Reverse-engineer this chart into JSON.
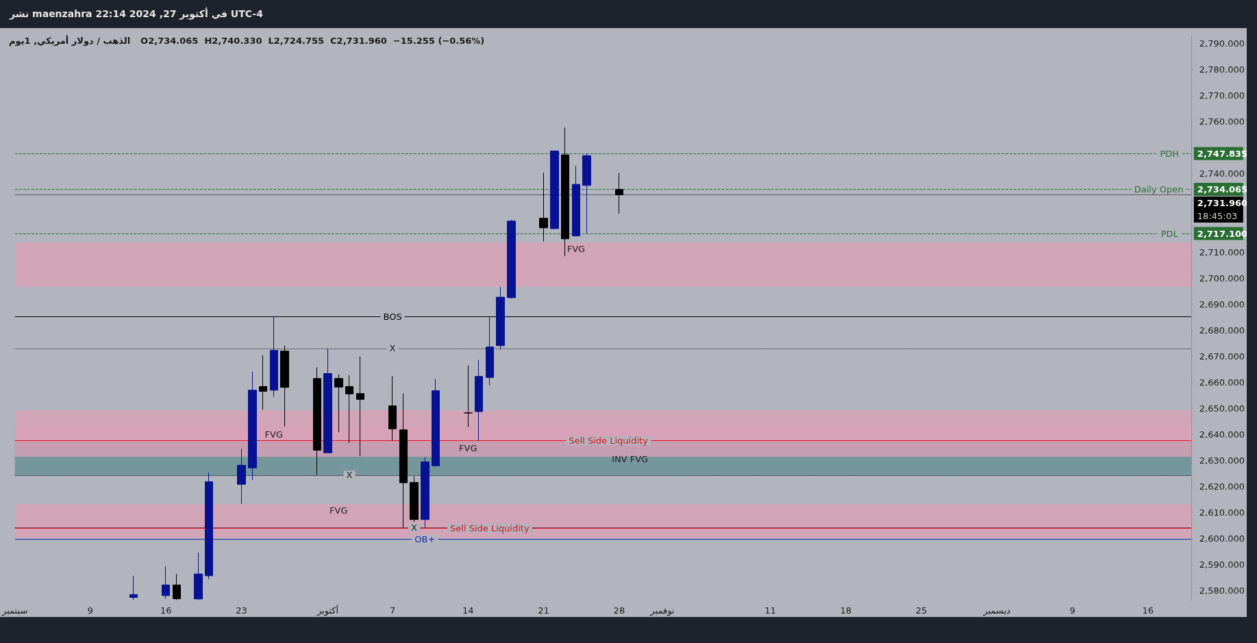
{
  "chart_data": {
    "type": "candlestick",
    "title": "الذهب / دولار أمريكي, 1يوم",
    "subtitle": "O2,734.065  H2,740.330  L2,724.755  C2,731.960  −15.255 (−0.56%)",
    "annotations": [
      "نشر maenzahra في أكتوبر 27, 2024 22:14 UTC-4",
      {
        "text": "BOS",
        "x": "2024-10-07",
        "y": 2685.3
      },
      {
        "text": "X",
        "x": "2024-10-07",
        "y": 2673.0
      },
      {
        "text": "X",
        "x": "2024-10-03",
        "y": 2624.4
      },
      {
        "text": "X",
        "x": "2024-10-09",
        "y": 2604.3
      },
      {
        "text": "Sell Side Liquidity",
        "x": "2024-10-27",
        "y": 2637.6
      },
      {
        "text": "Sell Side Liquidity",
        "x": "2024-10-16",
        "y": 2604.1
      },
      {
        "text": "OB+",
        "x": "2024-10-10",
        "y": 2599.8
      },
      {
        "text": "FVG",
        "x": "2024-09-26",
        "y": 2642.6
      },
      {
        "text": "FVG",
        "x": "2024-10-02",
        "y": 2613.3
      },
      {
        "text": "FVG",
        "x": "2024-10-14",
        "y": 2637.2
      },
      {
        "text": "INV FVG",
        "x": "2024-10-29",
        "y": 2630.65
      },
      {
        "text": "FVG",
        "x": "2024-10-24",
        "y": 2713.7
      },
      {
        "text": "PDH",
        "x": "2024-12-18",
        "y": 2747.835
      },
      {
        "text": "Daily Open",
        "x": "2024-12-17",
        "y": 2734.065
      },
      {
        "text": "PDL",
        "x": "2024-12-18",
        "y": 2717.1
      },
      "18:45:03"
    ],
    "x": [
      "2024-09-13",
      "2024-09-16",
      "2024-09-17",
      "2024-09-19",
      "2024-09-20",
      "2024-09-23",
      "2024-09-24",
      "2024-09-25",
      "2024-09-26",
      "2024-09-27",
      "2024-09-30",
      "2024-10-01",
      "2024-10-02",
      "2024-10-03",
      "2024-10-04",
      "2024-10-07",
      "2024-10-08",
      "2024-10-09",
      "2024-10-10",
      "2024-10-11",
      "2024-10-14",
      "2024-10-15",
      "2024-10-16",
      "2024-10-17",
      "2024-10-18",
      "2024-10-21",
      "2024-10-22",
      "2024-10-23",
      "2024-10-24",
      "2024-10-25",
      "2024-10-28"
    ],
    "ohlc": [
      [
        2577.5,
        2585.8,
        2576.5,
        2578.6
      ],
      [
        2578.2,
        2589.5,
        2576.9,
        2582.3
      ],
      [
        2582.3,
        2586.5,
        2576.5,
        2577.0
      ],
      [
        2576.9,
        2594.7,
        2576.5,
        2586.5
      ],
      [
        2585.8,
        2625.4,
        2584.5,
        2621.9
      ],
      [
        2620.9,
        2634.5,
        2613.4,
        2628.2
      ],
      [
        2627.2,
        2664.1,
        2622.5,
        2657.0
      ],
      [
        2658.4,
        2670.4,
        2649.5,
        2656.6
      ],
      [
        2657.0,
        2685.3,
        2654.4,
        2672.3
      ],
      [
        2672.0,
        2674.1,
        2643.1,
        2658.1
      ],
      [
        2661.5,
        2665.7,
        2624.4,
        2634.0
      ],
      [
        2633.0,
        2673.1,
        2633.0,
        2663.4
      ],
      [
        2661.5,
        2663.1,
        2640.9,
        2658.2
      ],
      [
        2658.4,
        2662.8,
        2636.7,
        2655.6
      ],
      [
        2655.7,
        2669.9,
        2631.7,
        2653.5
      ],
      [
        2651.0,
        2662.4,
        2637.6,
        2642.2
      ],
      [
        2641.8,
        2655.8,
        2604.1,
        2621.5
      ],
      [
        2621.6,
        2624.0,
        2606.5,
        2607.4
      ],
      [
        2607.4,
        2631.3,
        2604.1,
        2629.5
      ],
      [
        2628.0,
        2661.3,
        2628.0,
        2656.8
      ],
      [
        2648.3,
        2666.5,
        2642.9,
        2648.3
      ],
      [
        2648.8,
        2668.6,
        2637.6,
        2662.3
      ],
      [
        2661.9,
        2685.3,
        2658.8,
        2673.6
      ],
      [
        2674.1,
        2696.6,
        2672.8,
        2692.7
      ],
      [
        2692.5,
        2722.4,
        2692.2,
        2721.9
      ],
      [
        2723.0,
        2740.5,
        2714.1,
        2719.3
      ],
      [
        2719.0,
        2748.8,
        2719.0,
        2748.8
      ],
      [
        2747.3,
        2757.8,
        2708.5,
        2715.1
      ],
      [
        2716.2,
        2743.1,
        2716.2,
        2736.0
      ],
      [
        2735.6,
        2747.835,
        2717.1,
        2747.0
      ],
      [
        2734.065,
        2740.33,
        2724.755,
        2731.96
      ]
    ],
    "colors": [
      "#061292",
      "#061292",
      "#000000",
      "#061292",
      "#061292",
      "#061292",
      "#061292",
      "#000000",
      "#061292",
      "#000000",
      "#000000",
      "#061292",
      "#000000",
      "#000000",
      "#000000",
      "#000000",
      "#000000",
      "#000000",
      "#061292",
      "#061292",
      "#000000",
      "#061292",
      "#061292",
      "#061292",
      "#061292",
      "#000000",
      "#061292",
      "#000000",
      "#061292",
      "#061292",
      "#000000"
    ],
    "xlim": [
      "2024-09-02",
      "2024-12-20"
    ],
    "xticks": [
      {
        "value": "2024-09-02",
        "label": "سبتمبر"
      },
      {
        "value": "2024-09-09",
        "label": "9"
      },
      {
        "value": "2024-09-16",
        "label": "16"
      },
      {
        "value": "2024-09-23",
        "label": "23"
      },
      {
        "value": "2024-10-01",
        "label": "أكتوبر"
      },
      {
        "value": "2024-10-07",
        "label": "7"
      },
      {
        "value": "2024-10-14",
        "label": "14"
      },
      {
        "value": "2024-10-21",
        "label": "21"
      },
      {
        "value": "2024-10-28",
        "label": "28"
      },
      {
        "value": "2024-11-01",
        "label": "نوفمبر"
      },
      {
        "value": "2024-11-11",
        "label": "11"
      },
      {
        "value": "2024-11-18",
        "label": "18"
      },
      {
        "value": "2024-11-25",
        "label": "25"
      },
      {
        "value": "2024-12-02",
        "label": "ديسمبر"
      },
      {
        "value": "2024-12-09",
        "label": "9"
      },
      {
        "value": "2024-12-16",
        "label": "16"
      }
    ],
    "ylim": [
      2576.3,
      2792.8
    ],
    "yticks": [
      {
        "value": 2580,
        "label": "2,580.000"
      },
      {
        "value": 2590,
        "label": "2,590.000"
      },
      {
        "value": 2600,
        "label": "2,600.000"
      },
      {
        "value": 2610,
        "label": "2,610.000"
      },
      {
        "value": 2620,
        "label": "2,620.000"
      },
      {
        "value": 2630,
        "label": "2,630.000"
      },
      {
        "value": 2640,
        "label": "2,640.000"
      },
      {
        "value": 2650,
        "label": "2,650.000"
      },
      {
        "value": 2660,
        "label": "2,660.000"
      },
      {
        "value": 2670,
        "label": "2,670.000"
      },
      {
        "value": 2680,
        "label": "2,680.000"
      },
      {
        "value": 2690,
        "label": "2,690.000"
      },
      {
        "value": 2700,
        "label": "2,700.000"
      },
      {
        "value": 2710,
        "label": "2,710.000"
      },
      {
        "value": 2720,
        "label": null
      },
      {
        "value": 2730,
        "label": null
      },
      {
        "value": 2740,
        "label": "2,740.000"
      },
      {
        "value": 2750,
        "label": null
      },
      {
        "value": 2760,
        "label": "2,760.000"
      },
      {
        "value": 2770,
        "label": "2,770.000"
      },
      {
        "value": 2780,
        "label": "2,780.000"
      },
      {
        "value": 2790,
        "label": "2,790.000"
      }
    ],
    "bands": [
      {
        "axis": "y",
        "from": 2634.6,
        "to": 2649.3,
        "color": "#d8a0b6"
      },
      {
        "axis": "y",
        "from": 2600.2,
        "to": 2613.3,
        "color": "#d8a0b6"
      },
      {
        "axis": "y",
        "from": 2624.1,
        "to": 2637.2,
        "color": "#668f96"
      },
      {
        "axis": "y",
        "from": 2631.5,
        "to": 2642.6,
        "color": "#d8a0b6"
      },
      {
        "axis": "y",
        "from": 2696.7,
        "to": 2713.7,
        "color": "#d8a0b6"
      }
    ],
    "ref_lines": [
      {
        "axis": "y",
        "value": 2685.3,
        "color": "#000000",
        "line_style": "solid"
      },
      {
        "axis": "y",
        "value": 2673.0,
        "color": "#222222",
        "line_style": "dotted"
      },
      {
        "axis": "y",
        "value": 2624.4,
        "color": "#222222",
        "line_style": "dotted"
      },
      {
        "axis": "y",
        "value": 2604.3,
        "color": "#222222",
        "line_style": "dotted"
      },
      {
        "axis": "y",
        "value": 2637.6,
        "color": "#e0101e",
        "line_style": "solid"
      },
      {
        "axis": "y",
        "value": 2604.1,
        "color": "#e0101e",
        "line_style": "solid"
      },
      {
        "axis": "y",
        "value": 2599.8,
        "color": "#1a2aa8",
        "line_style": "solid"
      },
      {
        "axis": "y",
        "value": 2747.835,
        "label": "2,747.835",
        "color": "#2a6e33",
        "line_style": "dashed"
      },
      {
        "axis": "y",
        "value": 2734.065,
        "label": "2,734.065",
        "color": "#2a6e33",
        "line_style": "dashed"
      },
      {
        "axis": "y",
        "value": 2717.1,
        "label": "2,717.100",
        "color": "#2a6e33",
        "line_style": "dashed"
      },
      {
        "axis": "y",
        "value": 2731.96,
        "label": "2,731.960",
        "color": "#000000",
        "line_style": "dotted"
      }
    ]
  }
}
